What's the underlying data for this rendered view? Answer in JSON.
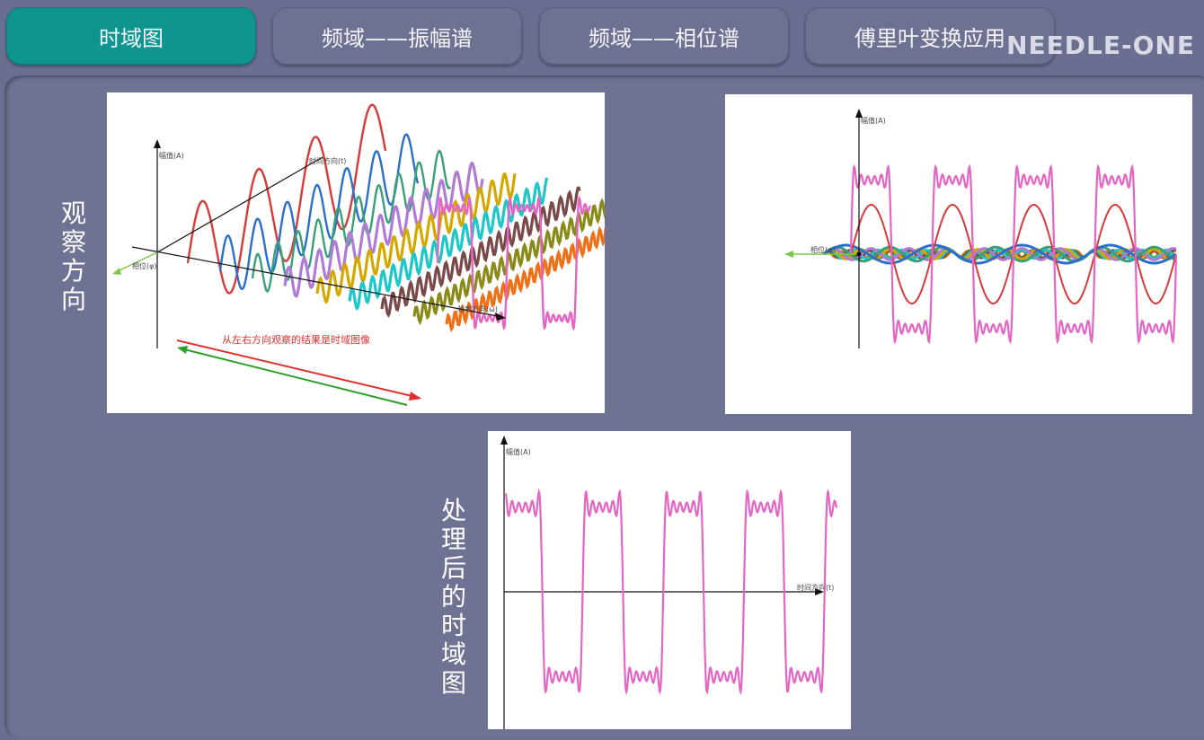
{
  "tabs": [
    {
      "label": "时域图",
      "active": true
    },
    {
      "label": "频域——振幅谱",
      "active": false
    },
    {
      "label": "频域——相位谱",
      "active": false
    },
    {
      "label": "傅里叶变换应用",
      "active": false
    }
  ],
  "brand": "NEEDLE-ONE",
  "labels": {
    "observe": "观察方向",
    "processed": "处理后的时域图"
  },
  "figure1": {
    "y_axis": "幅值(A)",
    "freq_axis": "频率方向(ω)",
    "phase_axis": "相位(φ)",
    "time_axis": "时间方向(t)",
    "caption": "从左右方向观察的结果是时域图像"
  },
  "figure2": {
    "y_axis": "幅值(A)",
    "phase_axis": "相位(φ)"
  },
  "figure3": {
    "y_axis": "幅值(A)",
    "time_axis": "时间方向(t)"
  },
  "colors": {
    "tab_active": "#0e9590",
    "tab_inactive": "#6d7293",
    "background": "#6a6f91",
    "composite_wave": "#e465c3",
    "caption_red": "#e03030",
    "arrow_green": "#2aa02a"
  },
  "wave_colors": [
    "#d63a3a",
    "#2a6fc9",
    "#3aa07a",
    "#b07ad6",
    "#d4a800",
    "#1ec7c7",
    "#7a4a4a",
    "#8a8a1a",
    "#f07018"
  ]
}
